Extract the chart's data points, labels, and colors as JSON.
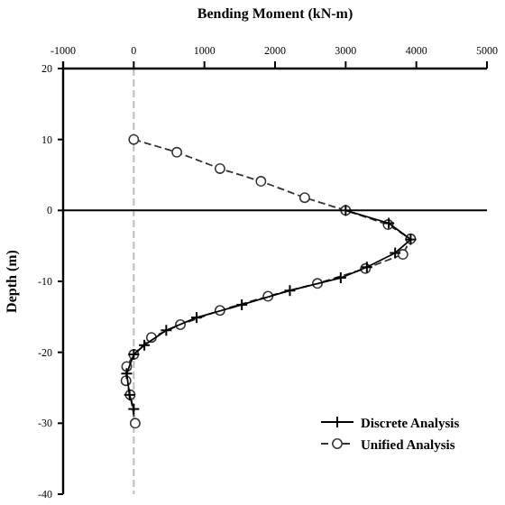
{
  "chart_data": {
    "type": "line",
    "xlabel": "Bending Moment (kN-m)",
    "ylabel": "Depth (m)",
    "xlim": [
      -1000,
      5000
    ],
    "xticks": [
      -1000,
      0,
      1000,
      2000,
      3000,
      4000,
      5000
    ],
    "ylim": [
      -40,
      20
    ],
    "yticks": [
      -40,
      -30,
      -20,
      -10,
      0,
      10,
      20
    ],
    "grid": false,
    "legend": "bottom right",
    "ref_lines": [
      {
        "axis": "x",
        "value": 0,
        "color": "#bbbbbb",
        "line_style": "dashed"
      },
      {
        "axis": "y",
        "value": 0,
        "color": "#000000",
        "line_style": "solid"
      }
    ],
    "series": [
      {
        "name": "Discrete Analysis",
        "color": "#000000",
        "marker": "cross",
        "line_style": "solid",
        "x": [
          3000,
          3610,
          3920,
          3700,
          3300,
          2930,
          2210,
          1530,
          890,
          460,
          150,
          0,
          -100,
          -60,
          0
        ],
        "values": [
          0,
          -1.8,
          -4.1,
          -6,
          -8,
          -9.5,
          -11.3,
          -13.3,
          -15.1,
          -16.9,
          -19,
          -20.3,
          -23,
          -26,
          -28
        ]
      },
      {
        "name": "Unified Analysis",
        "color": "#333333",
        "marker": "circle",
        "line_style": "dashed",
        "x": [
          0,
          610,
          1220,
          1800,
          2420,
          3000,
          3600,
          3920,
          3810,
          3280,
          2600,
          1900,
          1220,
          660,
          250,
          0,
          -100,
          -110,
          -50,
          20
        ],
        "values": [
          10,
          8.2,
          5.9,
          4.1,
          1.8,
          0,
          -2,
          -4,
          -6.2,
          -8.2,
          -10.3,
          -12.1,
          -14.1,
          -16.1,
          -17.9,
          -20.3,
          -22,
          -24,
          -26,
          -30
        ]
      }
    ]
  }
}
